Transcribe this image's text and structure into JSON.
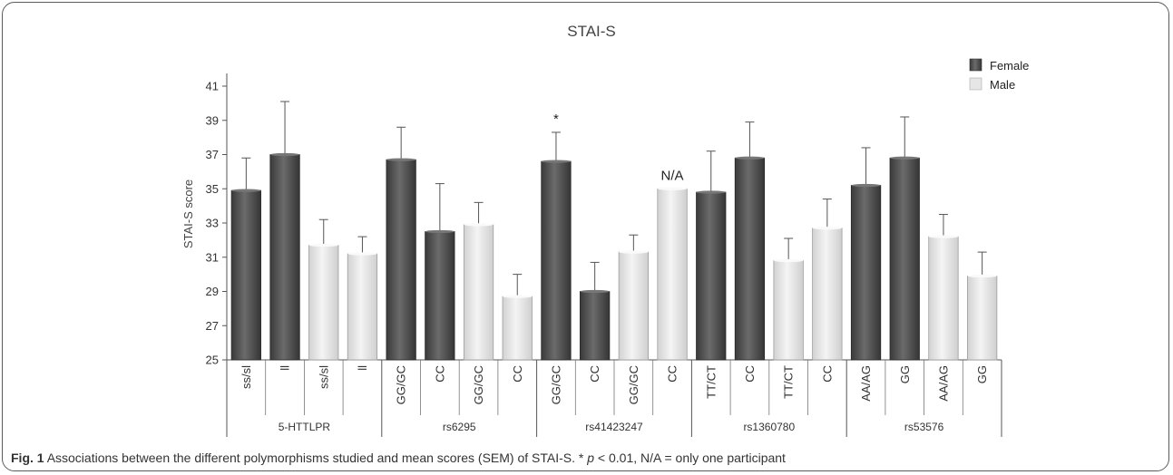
{
  "caption": {
    "label": "Fig. 1",
    "text_a": "Associations between the different polymorphisms studied and mean scores (SEM) of STAI-S. * ",
    "p": "p",
    "text_b": " < 0.01, N/A = only one participant"
  },
  "chart_data": {
    "type": "bar",
    "title": "STAI-S",
    "xlabel": "",
    "ylabel": "STAI-S score",
    "ylim": [
      25,
      41
    ],
    "yticks": [
      25,
      27,
      29,
      31,
      33,
      35,
      37,
      39,
      41
    ],
    "grid": false,
    "legend_position": "top-right",
    "legend": [
      {
        "name": "Female",
        "color": "#4f4f4f"
      },
      {
        "name": "Male",
        "color": "#e6e6e6"
      }
    ],
    "groups": [
      {
        "name": "5-HTTLPR",
        "size": 4
      },
      {
        "name": "rs6295",
        "size": 4
      },
      {
        "name": "rs41423247",
        "size": 4
      },
      {
        "name": "rs1360780",
        "size": 4
      },
      {
        "name": "rs53576",
        "size": 4
      }
    ],
    "bars": [
      {
        "category": "ss/sl",
        "sex": "Female",
        "value": 34.9,
        "sem": 1.9
      },
      {
        "category": "ll",
        "sex": "Female",
        "value": 37.0,
        "sem": 3.1
      },
      {
        "category": "ss/sl",
        "sex": "Male",
        "value": 31.7,
        "sem": 1.5
      },
      {
        "category": "ll",
        "sex": "Male",
        "value": 31.2,
        "sem": 1.0
      },
      {
        "category": "GG/GC",
        "sex": "Female",
        "value": 36.7,
        "sem": 1.9
      },
      {
        "category": "CC",
        "sex": "Female",
        "value": 32.5,
        "sem": 2.8
      },
      {
        "category": "GG/GC",
        "sex": "Male",
        "value": 32.9,
        "sem": 1.3
      },
      {
        "category": "CC",
        "sex": "Male",
        "value": 28.7,
        "sem": 1.3
      },
      {
        "category": "GG/GC",
        "sex": "Female",
        "value": 36.6,
        "sem": 1.7,
        "annotation": "*"
      },
      {
        "category": "CC",
        "sex": "Female",
        "value": 29.0,
        "sem": 1.7
      },
      {
        "category": "GG/GC",
        "sex": "Male",
        "value": 31.3,
        "sem": 1.0
      },
      {
        "category": "CC",
        "sex": "Male",
        "value": 35.0,
        "sem": 0.0,
        "annotation": "N/A"
      },
      {
        "category": "TT/CT",
        "sex": "Female",
        "value": 34.8,
        "sem": 2.4
      },
      {
        "category": "CC",
        "sex": "Female",
        "value": 36.8,
        "sem": 2.1
      },
      {
        "category": "TT/CT",
        "sex": "Male",
        "value": 30.8,
        "sem": 1.3
      },
      {
        "category": "CC",
        "sex": "Male",
        "value": 32.7,
        "sem": 1.7
      },
      {
        "category": "AA/AG",
        "sex": "Female",
        "value": 35.2,
        "sem": 2.2
      },
      {
        "category": "GG",
        "sex": "Female",
        "value": 36.8,
        "sem": 2.4
      },
      {
        "category": "AA/AG",
        "sex": "Male",
        "value": 32.2,
        "sem": 1.3
      },
      {
        "category": "GG",
        "sex": "Male",
        "value": 29.9,
        "sem": 1.4
      }
    ]
  }
}
